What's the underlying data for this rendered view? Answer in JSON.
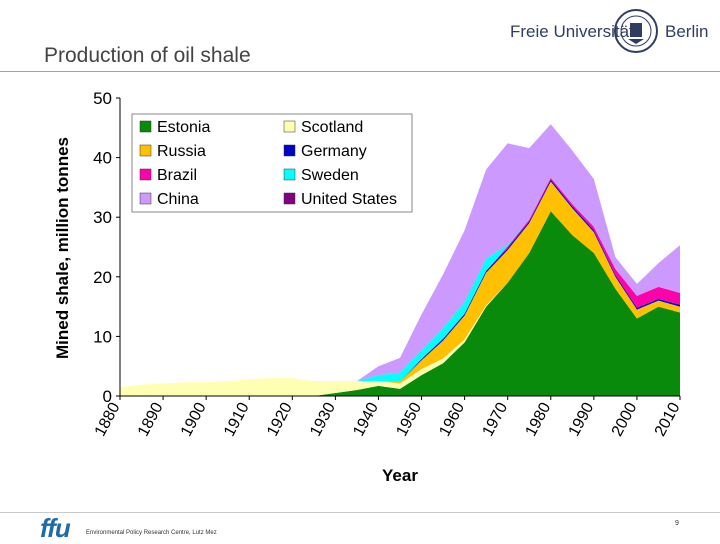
{
  "slide": {
    "title": "Production of oil shale",
    "university_left": "Freie Universität",
    "university_right": "Berlin",
    "footer_logo": "ffu",
    "footer_text": "Environmental Policy Research Centre, Lutz Mez",
    "page_number": "9"
  },
  "chart_data": {
    "type": "area",
    "stacked": true,
    "title": "",
    "xlabel": "Year",
    "ylabel": "Mined shale, million tonnes",
    "xlim": [
      1880,
      2010
    ],
    "ylim": [
      0,
      50
    ],
    "yticks": [
      0,
      10,
      20,
      30,
      40,
      50
    ],
    "xticks": [
      1880,
      1890,
      1900,
      1910,
      1920,
      1930,
      1940,
      1950,
      1960,
      1970,
      1980,
      1990,
      2000,
      2010
    ],
    "grid": false,
    "legend_position": "top-left",
    "legend_order": [
      "Estonia",
      "Scotland",
      "Russia",
      "Germany",
      "Brazil",
      "Sweden",
      "China",
      "United States"
    ],
    "x": [
      1880,
      1885,
      1890,
      1895,
      1900,
      1905,
      1910,
      1915,
      1920,
      1925,
      1930,
      1935,
      1940,
      1945,
      1950,
      1955,
      1960,
      1965,
      1970,
      1975,
      1980,
      1985,
      1990,
      1995,
      2000,
      2005,
      2010
    ],
    "series": [
      {
        "name": "Estonia",
        "color": "#0a8a0a",
        "values": [
          0,
          0,
          0,
          0,
          0,
          0,
          0,
          0,
          0,
          0,
          0.5,
          1,
          1.7,
          1.2,
          3.5,
          5.5,
          9,
          15,
          19,
          24,
          31,
          27,
          24,
          18,
          13,
          15,
          14
        ]
      },
      {
        "name": "Scotland",
        "color": "#ffffb4",
        "values": [
          1.5,
          1.9,
          2.1,
          2.3,
          2.3,
          2.5,
          2.8,
          3,
          3,
          2.5,
          2,
          1.5,
          0.8,
          0.9,
          1,
          0.8,
          0.5,
          0.2,
          0,
          0,
          0,
          0,
          0,
          0,
          0,
          0,
          0
        ]
      },
      {
        "name": "Russia",
        "color": "#ffc000",
        "values": [
          0,
          0,
          0,
          0,
          0,
          0,
          0,
          0,
          0,
          0,
          0,
          0,
          0,
          0.3,
          1.5,
          3,
          4,
          5.5,
          5.5,
          5,
          5,
          4.5,
          3.5,
          2,
          1.5,
          1,
          1
        ]
      },
      {
        "name": "Germany",
        "color": "#0000cc",
        "values": [
          0,
          0,
          0,
          0,
          0,
          0,
          0,
          0,
          0,
          0,
          0,
          0,
          0,
          0,
          0.2,
          0.3,
          0.3,
          0.3,
          0.3,
          0.3,
          0.3,
          0.3,
          0.3,
          0.3,
          0.3,
          0.3,
          0.3
        ]
      },
      {
        "name": "Brazil",
        "color": "#ff00aa",
        "values": [
          0,
          0,
          0,
          0,
          0,
          0,
          0,
          0,
          0,
          0,
          0,
          0,
          0,
          0,
          0,
          0,
          0,
          0,
          0.3,
          0.3,
          0.3,
          0.4,
          0.6,
          1,
          2,
          2,
          2
        ]
      },
      {
        "name": "Sweden",
        "color": "#00ffff",
        "values": [
          0,
          0,
          0,
          0,
          0,
          0,
          0,
          0,
          0,
          0,
          0,
          0,
          1,
          1.5,
          1.5,
          1.8,
          2,
          2,
          0.3,
          0,
          0,
          0,
          0,
          0,
          0,
          0,
          0
        ]
      },
      {
        "name": "China",
        "color": "#cc99ff",
        "values": [
          0,
          0,
          0,
          0,
          0,
          0,
          0,
          0,
          0,
          0,
          0,
          0,
          1.5,
          2.5,
          6,
          9,
          12,
          15,
          17,
          12,
          9,
          9,
          8,
          2,
          2,
          4,
          8
        ]
      },
      {
        "name": "United States",
        "color": "#800080",
        "values": [
          0,
          0,
          0,
          0,
          0,
          0,
          0,
          0,
          0,
          0,
          0,
          0,
          0,
          0,
          0,
          0,
          0,
          0,
          0,
          0,
          0,
          0,
          0,
          0,
          0,
          0,
          0
        ]
      }
    ]
  }
}
